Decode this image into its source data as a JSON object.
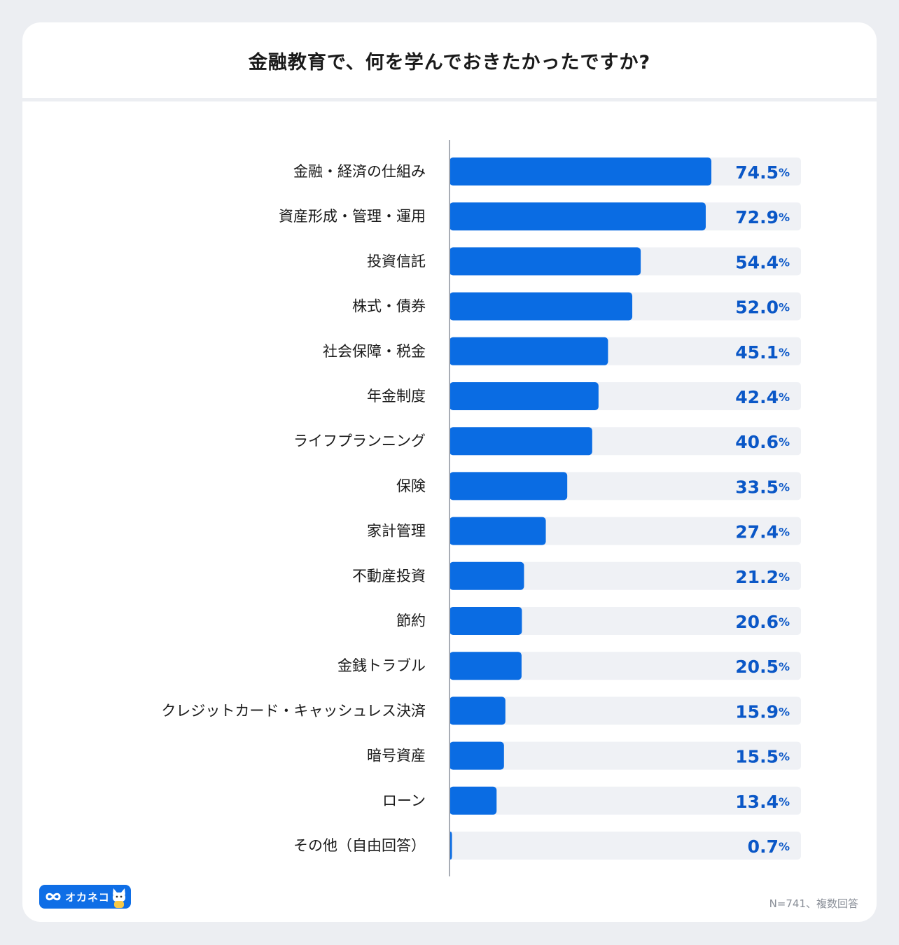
{
  "title": "金融教育で、何を学んでおきたかったですか?",
  "note": "N=741、複数回答",
  "logo_text": "オカネコ",
  "logo_icon": "infinity-icon",
  "colors": {
    "bar": "#0a6ce3",
    "track": "#eff1f5",
    "value_text": "#0a57c7",
    "axis": "#a8adb5"
  },
  "chart_data": {
    "type": "bar",
    "orientation": "horizontal",
    "title": "金融教育で、何を学んでおきたかったですか?",
    "unit": "%",
    "xlim": [
      0,
      100
    ],
    "grid": false,
    "categories": [
      "金融・経済の仕組み",
      "資産形成・管理・運用",
      "投資信託",
      "株式・債券",
      "社会保障・税金",
      "年金制度",
      "ライフプランニング",
      "保険",
      "家計管理",
      "不動産投資",
      "節約",
      "金銭トラブル",
      "クレジットカード・キャッシュレス決済",
      "暗号資産",
      "ローン",
      "その他（自由回答）"
    ],
    "values": [
      74.5,
      72.9,
      54.4,
      52.0,
      45.1,
      42.4,
      40.6,
      33.5,
      27.4,
      21.2,
      20.6,
      20.5,
      15.9,
      15.5,
      13.4,
      0.7
    ],
    "value_labels": [
      "74.5",
      "72.9",
      "54.4",
      "52.0",
      "45.1",
      "42.4",
      "40.6",
      "33.5",
      "27.4",
      "21.2",
      "20.6",
      "20.5",
      "15.9",
      "15.5",
      "13.4",
      "0.7"
    ]
  }
}
